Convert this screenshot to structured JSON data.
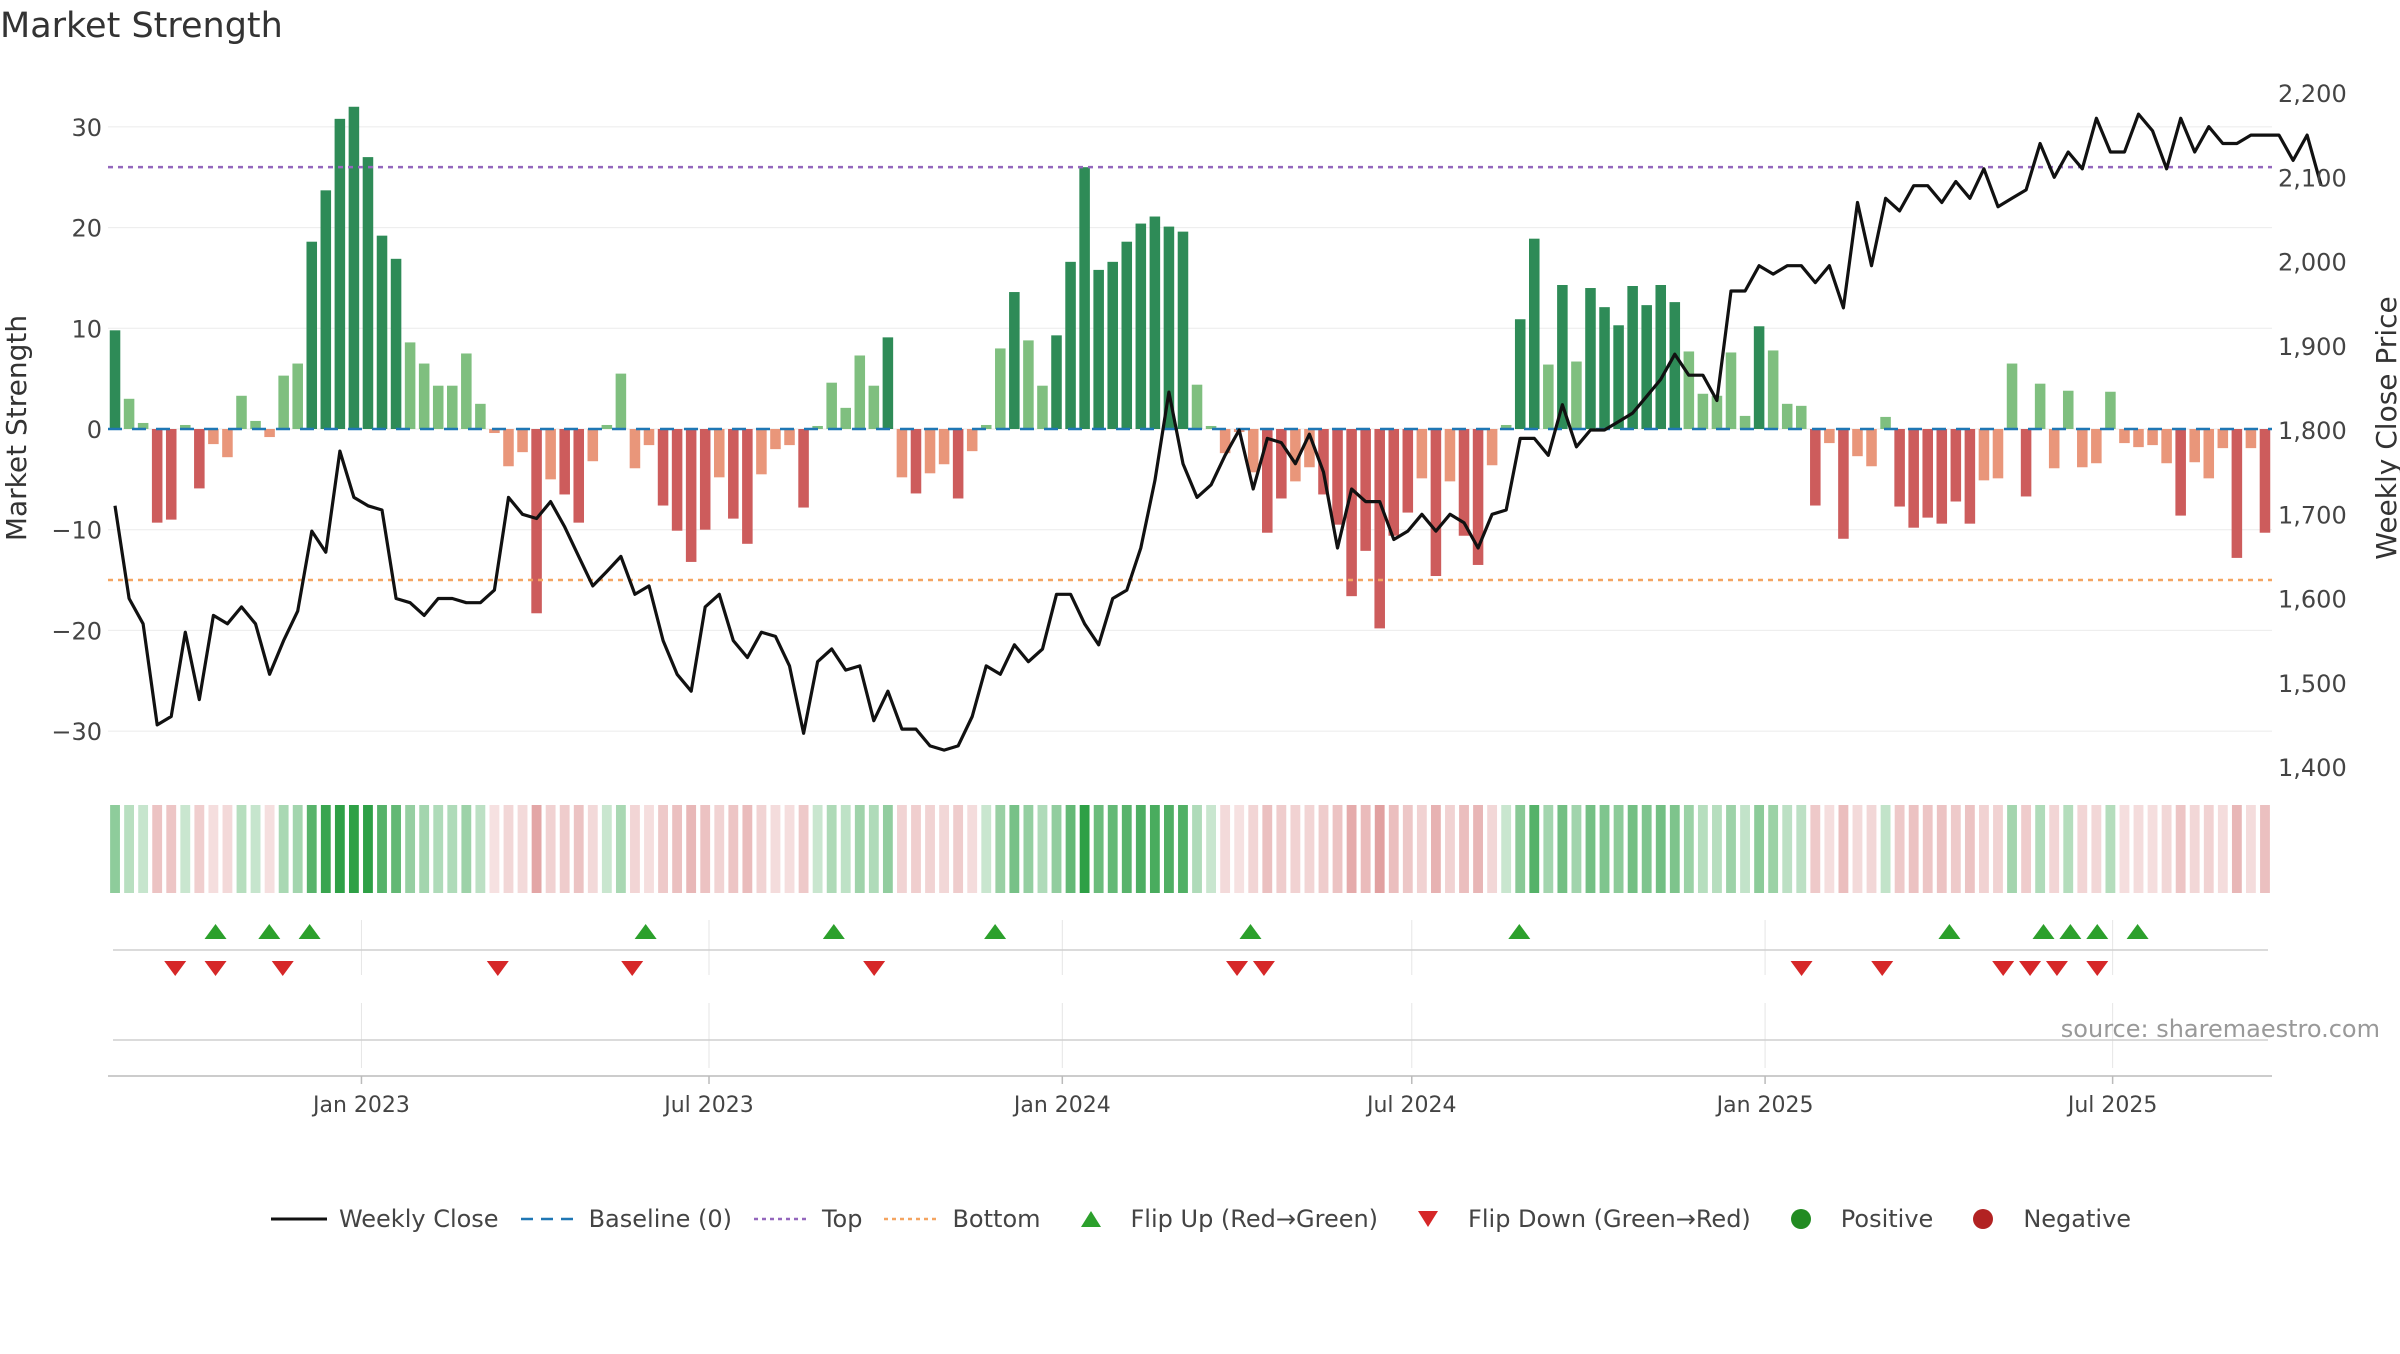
{
  "title": "Market Strength",
  "source": "source: sharemaestro.com",
  "colors": {
    "strong_green": "#2e8b57",
    "light_green": "#7fbf7f",
    "strong_red": "#cd5c5c",
    "light_red": "#e9967a",
    "price_line": "#111111",
    "baseline": "#1f77b4",
    "top": "#9467bd",
    "bottom": "#f4a460",
    "flip_up": "#2ca02c",
    "flip_down": "#d62728",
    "positive": "#228b22",
    "negative": "#b22222"
  },
  "legend": [
    {
      "key": "line",
      "label": "Weekly Close",
      "icon": "solid-line"
    },
    {
      "key": "baseline",
      "label": "Baseline (0)",
      "icon": "dash-line"
    },
    {
      "key": "top",
      "label": "Top",
      "icon": "dotted-line"
    },
    {
      "key": "bottom",
      "label": "Bottom",
      "icon": "dotted-line"
    },
    {
      "key": "flip_up",
      "label": "Flip Up (Red→Green)",
      "icon": "triangle-up"
    },
    {
      "key": "flip_down",
      "label": "Flip Down (Green→Red)",
      "icon": "triangle-down"
    },
    {
      "key": "positive",
      "label": "Positive",
      "icon": "circle"
    },
    {
      "key": "negative",
      "label": "Negative",
      "icon": "circle"
    }
  ],
  "chart_data": {
    "type": "bar",
    "title": "Market Strength",
    "ylabel": "Market Strength",
    "y2label": "Weekly Close Price",
    "ylim": [
      -34,
      35
    ],
    "y2lim": [
      1400,
      2200
    ],
    "yticks": [
      30,
      20,
      10,
      0,
      -10,
      -20,
      -30
    ],
    "ytick_labels": [
      "30",
      "20",
      "10",
      "0",
      "−10",
      "−20",
      "−30"
    ],
    "y2ticks": [
      2200,
      2100,
      2000,
      1900,
      1800,
      1700,
      1600,
      1500,
      1400
    ],
    "y2tick_labels": [
      "2,200",
      "2,100",
      "2,000",
      "1,900",
      "1,800",
      "1,700",
      "1,600",
      "1,500",
      "1,400"
    ],
    "x_start": "2022-08-22",
    "x_end": "2025-09-22",
    "xticks": [
      "2023-01-01",
      "2023-07-01",
      "2024-01-01",
      "2024-07-01",
      "2025-01-01",
      "2025-07-01"
    ],
    "xtick_labels": [
      "Jan 2023",
      "Jul 2023",
      "Jan 2024",
      "Jul 2024",
      "Jan 2025",
      "Jul 2025"
    ],
    "top_level": 26,
    "bottom_level": -15,
    "baseline": 0,
    "grid": true,
    "legend_position": "bottom",
    "strength": [
      9.8,
      3,
      0.6,
      -9.3,
      -9,
      0.4,
      -5.9,
      -1.5,
      -2.8,
      3.3,
      0.8,
      -0.8,
      5.3,
      6.5,
      18.6,
      23.7,
      30.8,
      32,
      27,
      19.2,
      16.9,
      8.6,
      6.5,
      4.3,
      4.3,
      7.5,
      2.5,
      -0.4,
      -3.7,
      -2.3,
      -18.3,
      -5,
      -6.5,
      -9.3,
      -3.2,
      0.4,
      5.5,
      -3.9,
      -1.6,
      -7.6,
      -10.1,
      -13.2,
      -10,
      -4.8,
      -8.9,
      -11.4,
      -4.5,
      -2,
      -1.6,
      -7.8,
      0.3,
      4.6,
      2.1,
      7.3,
      4.3,
      9.1,
      -4.8,
      -6.4,
      -4.4,
      -3.5,
      -6.9,
      -2.2,
      0.4,
      8,
      13.6,
      8.8,
      4.3,
      9.3,
      16.6,
      26,
      15.8,
      16.6,
      18.6,
      20.4,
      21.1,
      20.1,
      19.6,
      4.4,
      0.3,
      -2.4,
      -0.3,
      -4.3,
      -10.3,
      -6.9,
      -5.2,
      -3.8,
      -6.5,
      -9.5,
      -16.6,
      -12.1,
      -19.8,
      -10.6,
      -8.3,
      -4.9,
      -14.6,
      -5.2,
      -10.6,
      -13.5,
      -3.6,
      0.4,
      10.9,
      18.9,
      6.4,
      14.3,
      6.7,
      14,
      12.1,
      10.3,
      14.2,
      12.3,
      14.3,
      12.6,
      7.7,
      3.5,
      3.3,
      7.6,
      1.3,
      10.2,
      7.8,
      2.5,
      2.3,
      -7.6,
      -1.4,
      -10.9,
      -2.7,
      -3.7,
      1.2,
      -7.7,
      -9.8,
      -8.8,
      -9.4,
      -7.2,
      -9.4,
      -5.1,
      -4.9,
      6.5,
      -6.7,
      4.5,
      -3.9,
      3.8,
      -3.8,
      -3.4,
      3.7,
      -1.4,
      -1.8,
      -1.6,
      -3.4,
      -8.6,
      -3.3,
      -4.9,
      -1.9,
      -12.8,
      -1.9,
      -10.3
    ],
    "close": [
      1710,
      1600,
      1570,
      1450,
      1460,
      1560,
      1480,
      1580,
      1570,
      1590,
      1570,
      1510,
      1550,
      1585,
      1680,
      1655,
      1775,
      1720,
      1710,
      1705,
      1600,
      1595,
      1580,
      1600,
      1600,
      1595,
      1595,
      1610,
      1720,
      1700,
      1695,
      1715,
      1685,
      1650,
      1615,
      1632,
      1650,
      1605,
      1615,
      1550,
      1510,
      1490,
      1590,
      1605,
      1550,
      1530,
      1560,
      1555,
      1520,
      1440,
      1525,
      1540,
      1515,
      1520,
      1455,
      1490,
      1445,
      1445,
      1425,
      1420,
      1425,
      1460,
      1520,
      1510,
      1545,
      1525,
      1540,
      1605,
      1605,
      1570,
      1545,
      1600,
      1610,
      1660,
      1740,
      1845,
      1760,
      1720,
      1735,
      1770,
      1800,
      1730,
      1790,
      1785,
      1760,
      1795,
      1750,
      1660,
      1730,
      1715,
      1715,
      1670,
      1680,
      1700,
      1680,
      1700,
      1690,
      1660,
      1700,
      1705,
      1790,
      1790,
      1770,
      1830,
      1780,
      1800,
      1800,
      1810,
      1820,
      1840,
      1860,
      1890,
      1865,
      1865,
      1835,
      1965,
      1965,
      1995,
      1985,
      1995,
      1995,
      1975,
      1995,
      1945,
      2070,
      1995,
      2075,
      2060,
      2090,
      2090,
      2070,
      2095,
      2075,
      2110,
      2065,
      2075,
      2085,
      2140,
      2100,
      2130,
      2110,
      2170,
      2130,
      2130,
      2175,
      2155,
      2110,
      2170,
      2130,
      2160,
      2140,
      2140,
      2150,
      2150,
      2150,
      2120,
      2150,
      2090
    ],
    "flip_up_dates": [
      "2022-10-17",
      "2022-11-14",
      "2022-12-05",
      "2023-05-29",
      "2023-09-04",
      "2023-11-27",
      "2024-04-08",
      "2024-08-26",
      "2025-04-07",
      "2025-05-26",
      "2025-06-09",
      "2025-06-23",
      "2025-07-14"
    ],
    "flip_down_dates": [
      "2022-09-26",
      "2022-10-17",
      "2022-11-21",
      "2023-03-13",
      "2023-05-22",
      "2023-09-25",
      "2024-04-01",
      "2024-04-15",
      "2025-01-20",
      "2025-03-03",
      "2025-05-05",
      "2025-05-19",
      "2025-06-02",
      "2025-06-23"
    ]
  }
}
